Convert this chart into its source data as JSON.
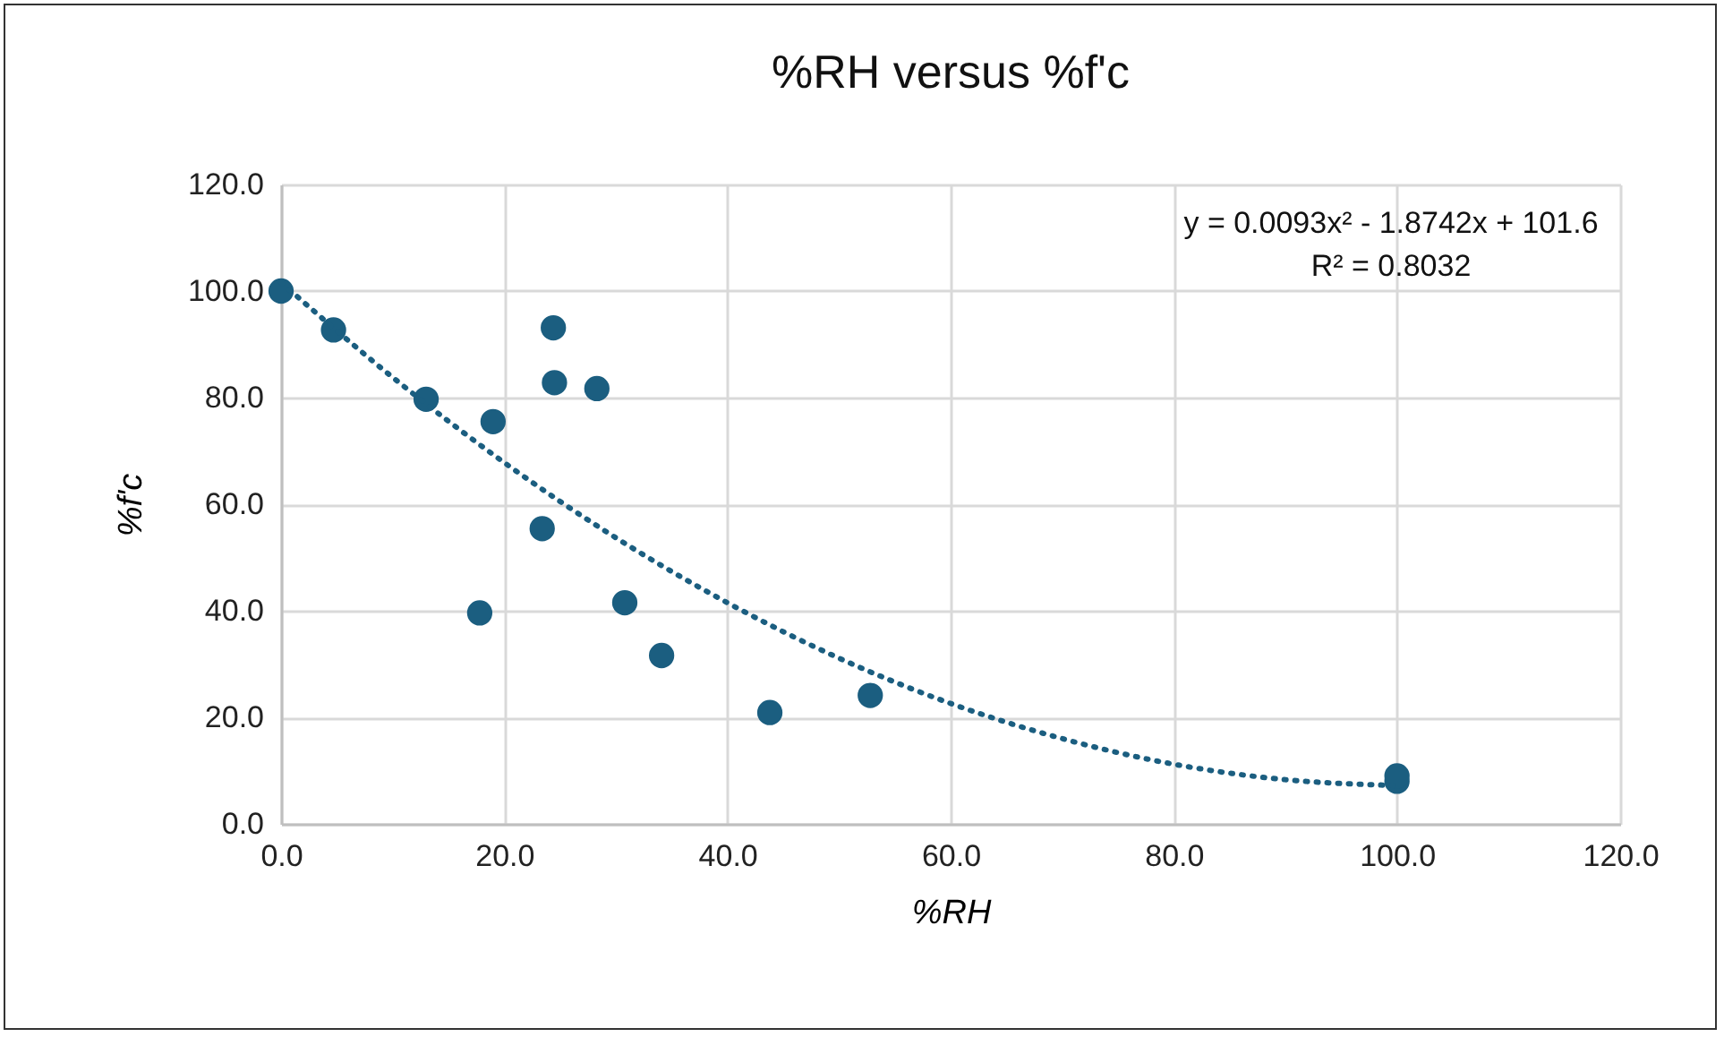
{
  "chart_data": {
    "type": "scatter",
    "title": "%RH versus %f'c",
    "xlabel": "%RH",
    "ylabel": "%f'c",
    "annotations": [
      "y = 0.0093x² - 1.8742x + 101.6",
      "R² = 0.8032"
    ],
    "xlim": [
      0,
      120
    ],
    "ylim": [
      0,
      120
    ],
    "xticks": [
      {
        "value": 0,
        "label": "0.0"
      },
      {
        "value": 20,
        "label": "20.0"
      },
      {
        "value": 40,
        "label": "40.0"
      },
      {
        "value": 60,
        "label": "60.0"
      },
      {
        "value": 80,
        "label": "80.0"
      },
      {
        "value": 100,
        "label": "100.0"
      },
      {
        "value": 120,
        "label": "120.0"
      }
    ],
    "yticks": [
      {
        "value": 0,
        "label": "0.0"
      },
      {
        "value": 20,
        "label": "20.0"
      },
      {
        "value": 40,
        "label": "40.0"
      },
      {
        "value": 60,
        "label": "60.0"
      },
      {
        "value": 80,
        "label": "80.0"
      },
      {
        "value": 100,
        "label": "100.0"
      },
      {
        "value": 120,
        "label": "120.0"
      }
    ],
    "grid": true,
    "marker": "circle",
    "series": [
      {
        "color": "#1b5e80",
        "x": [
          0,
          4.7,
          13.0,
          19.0,
          24.4,
          24.5,
          28.3,
          23.4,
          17.8,
          30.8,
          34.1,
          43.8,
          52.8,
          100,
          100
        ],
        "values": [
          100,
          92.7,
          79.7,
          75.5,
          93.1,
          82.8,
          81.7,
          55.4,
          39.6,
          41.5,
          31.6,
          20.9,
          24.1,
          8,
          9
        ]
      },
      {
        "type": "line",
        "color": "#1b5e80",
        "line_style": "dotted",
        "marker": "none",
        "x": [
          0,
          10,
          20,
          30,
          40,
          50,
          60,
          70,
          80,
          90,
          100
        ],
        "values": [
          101.6,
          83.8,
          67.8,
          53.7,
          41.5,
          31.1,
          22.6,
          16.0,
          11.2,
          8.3,
          7.2
        ]
      }
    ]
  }
}
